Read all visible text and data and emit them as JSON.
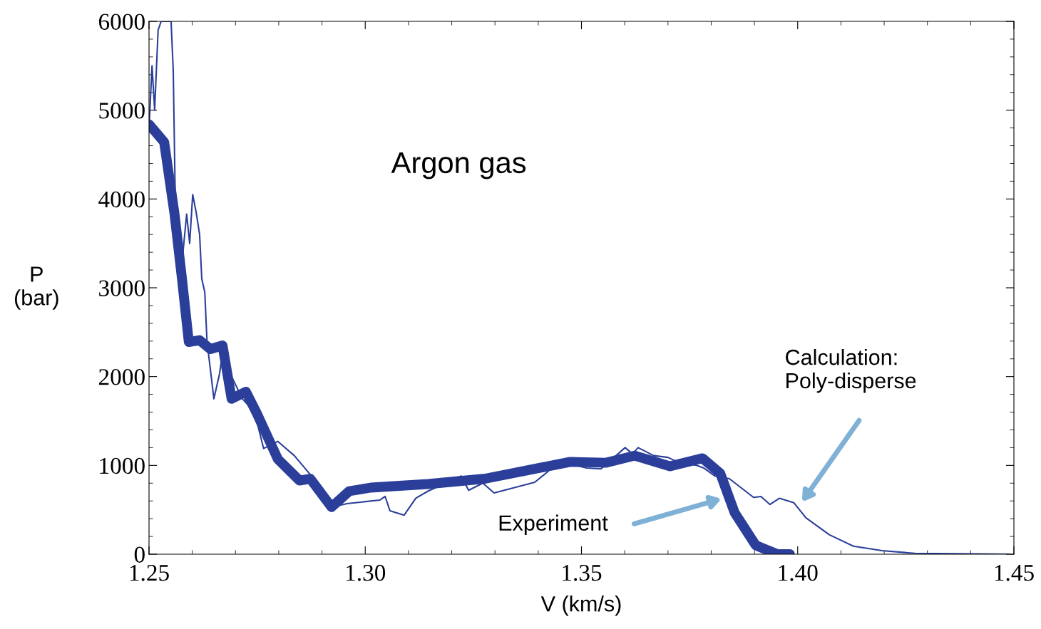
{
  "chart_data": {
    "type": "line",
    "xlabel": "V (km/s)",
    "ylabel": "P\n(bar)",
    "xlim": [
      1.25,
      1.45
    ],
    "xticks": [
      {
        "value": 1.25,
        "label": "1.25"
      },
      {
        "value": 1.3,
        "label": "1.30"
      },
      {
        "value": 1.35,
        "label": "1.35"
      },
      {
        "value": 1.4,
        "label": "1.40"
      },
      {
        "value": 1.45,
        "label": "1.45"
      }
    ],
    "ylim": [
      0,
      6000
    ],
    "yticks": [
      0,
      1000,
      2000,
      3000,
      4000,
      5000,
      6000
    ],
    "grid": false,
    "line_style": "solid",
    "marker": "none",
    "series": [
      {
        "color": "#2b3f9a",
        "x": [
          1.25,
          1.2507,
          1.2513,
          1.2521,
          1.2528,
          1.2551,
          1.2556,
          1.2561,
          1.2568,
          1.2576,
          1.2587,
          1.2594,
          1.2601,
          1.2609,
          1.2617,
          1.2622,
          1.2629,
          1.2634,
          1.265,
          1.2663,
          1.2671,
          1.2691,
          1.2716,
          1.2744,
          1.2765,
          1.2798,
          1.2836,
          1.2869,
          1.2889,
          1.2922,
          1.2958,
          1.3034,
          1.3046,
          1.3057,
          1.309,
          1.3117,
          1.3145,
          1.3222,
          1.3239,
          1.3272,
          1.3298,
          1.3392,
          1.342,
          1.3446,
          1.3512,
          1.3545,
          1.3601,
          1.3618,
          1.3631,
          1.3667,
          1.37,
          1.3722,
          1.3766,
          1.3783,
          1.3809,
          1.3842,
          1.3898,
          1.3915,
          1.3936,
          1.3958,
          1.3991,
          1.4019,
          1.4073,
          1.4129,
          1.4195,
          1.4271,
          1.4492
        ],
        "values": [
          4800,
          5500,
          5000,
          5900,
          6000,
          6000,
          5450,
          3900,
          3620,
          3270,
          3830,
          3500,
          4050,
          3850,
          3600,
          3100,
          2950,
          2400,
          1750,
          2030,
          2300,
          2000,
          1750,
          1600,
          1190,
          1270,
          1110,
          920,
          800,
          530,
          570,
          610,
          650,
          490,
          440,
          630,
          710,
          880,
          720,
          800,
          690,
          810,
          920,
          1050,
          970,
          960,
          1200,
          1130,
          1200,
          1110,
          1090,
          1040,
          1000,
          970,
          880,
          850,
          640,
          650,
          560,
          630,
          580,
          410,
          220,
          90,
          40,
          10,
          0
        ]
      },
      {
        "color": "#2b3f9a",
        "x": [
          1.25,
          1.2535,
          1.2559,
          1.2576,
          1.2592,
          1.2617,
          1.2642,
          1.267,
          1.2691,
          1.2724,
          1.2749,
          1.2798,
          1.2848,
          1.2873,
          1.2922,
          1.2963,
          1.3013,
          1.3145,
          1.3277,
          1.3474,
          1.3557,
          1.3623,
          1.3705,
          1.378,
          1.3821,
          1.3854,
          1.3903,
          1.3953,
          1.3982
        ],
        "values": [
          4840,
          4640,
          3830,
          3110,
          2390,
          2410,
          2310,
          2350,
          1750,
          1830,
          1590,
          1070,
          830,
          850,
          530,
          710,
          750,
          790,
          850,
          1040,
          1030,
          1110,
          990,
          1080,
          910,
          470,
          100,
          0,
          0
        ]
      }
    ],
    "annotations": [
      "Argon gas",
      "Experiment",
      "Calculation:\nPoly-disperse"
    ]
  }
}
